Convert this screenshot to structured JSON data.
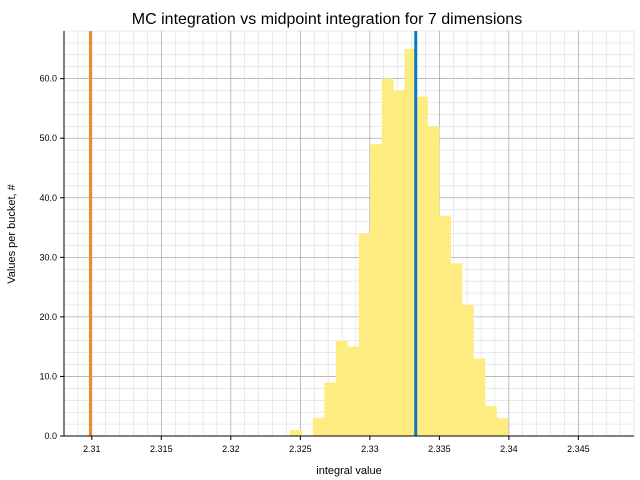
{
  "chart_data": {
    "type": "bar",
    "title": "MC integration vs midpoint integration for 7 dimensions",
    "xlabel": "integral value",
    "ylabel": "Values per bucket, #",
    "xlim": [
      2.308,
      2.349
    ],
    "ylim": [
      0,
      68
    ],
    "xticks": [
      2.31,
      2.315,
      2.32,
      2.325,
      2.33,
      2.335,
      2.34,
      2.345
    ],
    "xtick_labels": [
      "2.31",
      "2.315",
      "2.32",
      "2.325",
      "2.33",
      "2.335",
      "2.34",
      "2.345"
    ],
    "yticks": [
      0,
      10,
      20,
      30,
      40,
      50,
      60
    ],
    "ytick_labels": [
      "0.0",
      "10.0",
      "20.0",
      "30.0",
      "40.0",
      "50.0",
      "60.0"
    ],
    "grid": true,
    "bar_color": "#ffec80",
    "bins": {
      "start": 2.32425,
      "width": 0.000825,
      "counts": [
        1,
        0,
        3,
        9,
        16,
        15,
        34,
        49,
        60,
        58,
        65,
        57,
        52,
        37,
        29,
        22,
        13,
        5,
        3
      ]
    },
    "vlines": [
      {
        "x": 2.3099,
        "color": "#f08a30"
      },
      {
        "x": 2.3333,
        "color": "#0a7ac2"
      }
    ]
  }
}
